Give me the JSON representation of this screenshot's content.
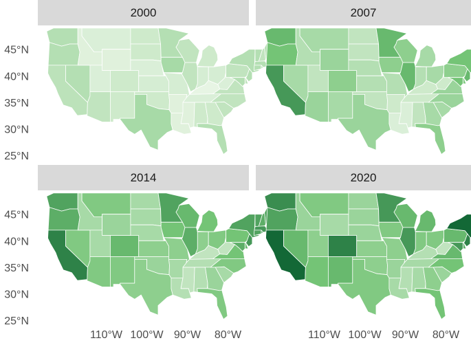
{
  "panels": [
    {
      "title": "2000",
      "color_values": {
        "WA": 0.25,
        "OR": 0.25,
        "CA": 0.22,
        "NV": 0.25,
        "ID": 0.08,
        "MT": 0.1,
        "WY": 0.08,
        "UT": 0.1,
        "AZ": 0.2,
        "CO": 0.15,
        "NM": 0.15,
        "ND": 0.15,
        "SD": 0.15,
        "NE": 0.1,
        "KS": 0.12,
        "OK": 0.15,
        "TX": 0.3,
        "MN": 0.25,
        "IA": 0.3,
        "MO": 0.12,
        "AR": 0.08,
        "LA": 0.08,
        "WI": 0.2,
        "IL": 0.2,
        "MS": 0.08,
        "AL": 0.15,
        "MI": 0.15,
        "IN": 0.12,
        "OH": 0.12,
        "KY": 0.05,
        "TN": 0.1,
        "GA": 0.15,
        "FL": 0.25,
        "SC": 0.2,
        "NC": 0.2,
        "VA": 0.2,
        "WV": 0.1,
        "PA": 0.2,
        "NY": 0.25,
        "ME": 0.25,
        "VT": 0.25,
        "NH": 0.2,
        "MA": 0.25,
        "CT": 0.25,
        "RI": 0.25,
        "NJ": 0.25,
        "DE": 0.2,
        "MD": 0.25
      }
    },
    {
      "title": "2007",
      "color_values": {
        "WA": 0.55,
        "OR": 0.5,
        "CA": 0.7,
        "NV": 0.3,
        "ID": 0.25,
        "MT": 0.3,
        "WY": 0.35,
        "UT": 0.2,
        "AZ": 0.35,
        "CO": 0.4,
        "NM": 0.3,
        "ND": 0.2,
        "SD": 0.2,
        "NE": 0.25,
        "KS": 0.25,
        "OK": 0.2,
        "TX": 0.35,
        "MN": 0.55,
        "IA": 0.4,
        "MO": 0.25,
        "AR": 0.15,
        "LA": 0.1,
        "WI": 0.4,
        "IL": 0.55,
        "MS": 0.1,
        "AL": 0.2,
        "MI": 0.3,
        "IN": 0.25,
        "OH": 0.3,
        "KY": 0.15,
        "TN": 0.15,
        "GA": 0.3,
        "FL": 0.4,
        "SC": 0.3,
        "NC": 0.35,
        "VA": 0.35,
        "WV": 0.15,
        "PA": 0.4,
        "NY": 0.5,
        "ME": 0.45,
        "VT": 0.45,
        "NH": 0.45,
        "MA": 0.5,
        "CT": 0.5,
        "RI": 0.5,
        "NJ": 0.55,
        "DE": 0.45,
        "MD": 0.5
      }
    },
    {
      "title": "2014",
      "color_values": {
        "WA": 0.65,
        "OR": 0.6,
        "CA": 0.8,
        "NV": 0.45,
        "ID": 0.3,
        "MT": 0.45,
        "WY": 0.35,
        "UT": 0.3,
        "AZ": 0.45,
        "CO": 0.55,
        "NM": 0.45,
        "ND": 0.3,
        "SD": 0.3,
        "NE": 0.3,
        "KS": 0.4,
        "OK": 0.35,
        "TX": 0.4,
        "MN": 0.65,
        "IA": 0.5,
        "MO": 0.4,
        "AR": 0.3,
        "LA": 0.25,
        "WI": 0.55,
        "IL": 0.6,
        "MS": 0.2,
        "AL": 0.25,
        "MI": 0.5,
        "IN": 0.4,
        "OH": 0.45,
        "KY": 0.2,
        "TN": 0.25,
        "GA": 0.35,
        "FL": 0.45,
        "SC": 0.3,
        "NC": 0.45,
        "VA": 0.5,
        "WV": 0.2,
        "PA": 0.5,
        "NY": 0.65,
        "ME": 0.65,
        "VT": 0.65,
        "NH": 0.6,
        "MA": 0.7,
        "CT": 0.65,
        "RI": 0.65,
        "NJ": 0.7,
        "DE": 0.55,
        "MD": 0.6
      }
    },
    {
      "title": "2020",
      "color_values": {
        "WA": 0.75,
        "OR": 0.65,
        "CA": 0.92,
        "NV": 0.55,
        "ID": 0.35,
        "MT": 0.45,
        "WY": 0.3,
        "UT": 0.4,
        "AZ": 0.5,
        "CO": 0.8,
        "NM": 0.55,
        "ND": 0.35,
        "SD": 0.35,
        "NE": 0.35,
        "KS": 0.4,
        "OK": 0.4,
        "TX": 0.45,
        "MN": 0.7,
        "IA": 0.45,
        "MO": 0.4,
        "AR": 0.35,
        "LA": 0.3,
        "WI": 0.55,
        "IL": 0.7,
        "MS": 0.25,
        "AL": 0.3,
        "MI": 0.55,
        "IN": 0.45,
        "OH": 0.45,
        "KY": 0.25,
        "TN": 0.3,
        "GA": 0.4,
        "FL": 0.5,
        "SC": 0.35,
        "NC": 0.5,
        "VA": 0.55,
        "WV": 0.2,
        "PA": 0.55,
        "NY": 0.92,
        "ME": 0.75,
        "VT": 0.8,
        "NH": 0.75,
        "MA": 0.85,
        "CT": 0.8,
        "RI": 0.8,
        "NJ": 0.8,
        "DE": 0.6,
        "MD": 0.7
      }
    }
  ],
  "y_axis_labels": [
    "45°N",
    "40°N",
    "35°N",
    "30°N",
    "25°N"
  ],
  "y_axis_latitudes": [
    45,
    40,
    35,
    30,
    25
  ],
  "x_axis_labels": [
    "110°W",
    "100°W",
    "90°W",
    "80°W"
  ],
  "x_axis_longitudes": [
    -110,
    -100,
    -90,
    -80
  ],
  "colors": {
    "palette_low": "#f4faf0",
    "palette_high": "#00562a",
    "strip_background": "#d9d9d9",
    "state_border": "#ffffff",
    "axis_text": "#4d4d4d"
  }
}
